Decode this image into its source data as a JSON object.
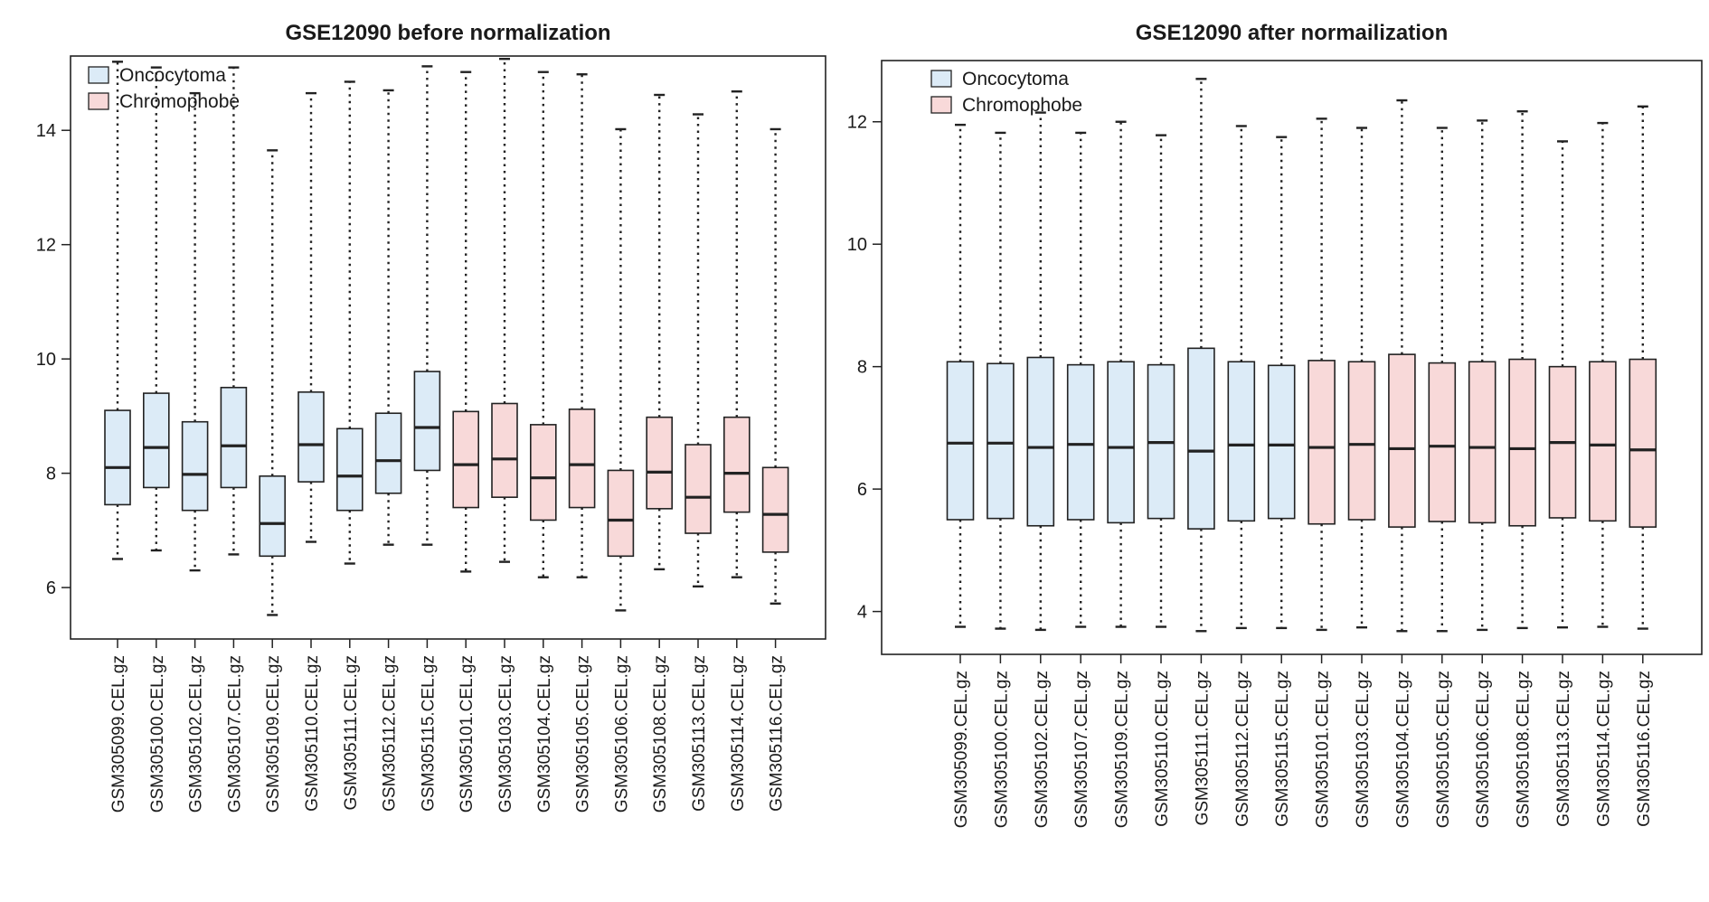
{
  "colors": {
    "Oncocytoma": "#dcebf7",
    "Chromophobe": "#f8d9d9",
    "box_stroke": "#222222",
    "axis": "#222222"
  },
  "chart_data": [
    {
      "type": "boxplot",
      "title": "GSE12090 before normalization",
      "ylim": [
        5.1,
        15.3
      ],
      "yticks": [
        6,
        8,
        10,
        12,
        14
      ],
      "legend": {
        "position": "top-left",
        "entries": [
          "Oncocytoma",
          "Chromophobe"
        ]
      },
      "categories": [
        "GSM305099.CEL.gz",
        "GSM305100.CEL.gz",
        "GSM305102.CEL.gz",
        "GSM305107.CEL.gz",
        "GSM305109.CEL.gz",
        "GSM305110.CEL.gz",
        "GSM305111.CEL.gz",
        "GSM305112.CEL.gz",
        "GSM305115.CEL.gz",
        "GSM305101.CEL.gz",
        "GSM305103.CEL.gz",
        "GSM305104.CEL.gz",
        "GSM305105.CEL.gz",
        "GSM305106.CEL.gz",
        "GSM305108.CEL.gz",
        "GSM305113.CEL.gz",
        "GSM305114.CEL.gz",
        "GSM305116.CEL.gz"
      ],
      "groups": [
        "Oncocytoma",
        "Oncocytoma",
        "Oncocytoma",
        "Oncocytoma",
        "Oncocytoma",
        "Oncocytoma",
        "Oncocytoma",
        "Oncocytoma",
        "Oncocytoma",
        "Chromophobe",
        "Chromophobe",
        "Chromophobe",
        "Chromophobe",
        "Chromophobe",
        "Chromophobe",
        "Chromophobe",
        "Chromophobe",
        "Chromophobe"
      ],
      "boxes": [
        {
          "min": 6.5,
          "q1": 7.45,
          "median": 8.1,
          "q3": 9.1,
          "max": 15.2
        },
        {
          "min": 6.65,
          "q1": 7.75,
          "median": 8.45,
          "q3": 9.4,
          "max": 15.1
        },
        {
          "min": 6.3,
          "q1": 7.35,
          "median": 7.98,
          "q3": 8.9,
          "max": 14.65
        },
        {
          "min": 6.58,
          "q1": 7.75,
          "median": 8.48,
          "q3": 9.5,
          "max": 15.1
        },
        {
          "min": 5.52,
          "q1": 6.55,
          "median": 7.12,
          "q3": 7.95,
          "max": 13.65
        },
        {
          "min": 6.8,
          "q1": 7.85,
          "median": 8.5,
          "q3": 9.42,
          "max": 14.65
        },
        {
          "min": 6.42,
          "q1": 7.35,
          "median": 7.95,
          "q3": 8.78,
          "max": 14.85
        },
        {
          "min": 6.75,
          "q1": 7.65,
          "median": 8.22,
          "q3": 9.05,
          "max": 14.7
        },
        {
          "min": 6.75,
          "q1": 8.05,
          "median": 8.8,
          "q3": 9.78,
          "max": 15.12
        },
        {
          "min": 6.28,
          "q1": 7.4,
          "median": 8.15,
          "q3": 9.08,
          "max": 15.02
        },
        {
          "min": 6.45,
          "q1": 7.58,
          "median": 8.25,
          "q3": 9.22,
          "max": 15.25
        },
        {
          "min": 6.18,
          "q1": 7.18,
          "median": 7.92,
          "q3": 8.85,
          "max": 15.02
        },
        {
          "min": 6.18,
          "q1": 7.4,
          "median": 8.15,
          "q3": 9.12,
          "max": 14.98
        },
        {
          "min": 5.6,
          "q1": 6.55,
          "median": 7.18,
          "q3": 8.05,
          "max": 14.02
        },
        {
          "min": 6.32,
          "q1": 7.38,
          "median": 8.02,
          "q3": 8.98,
          "max": 14.62
        },
        {
          "min": 6.02,
          "q1": 6.95,
          "median": 7.58,
          "q3": 8.5,
          "max": 14.28
        },
        {
          "min": 6.18,
          "q1": 7.32,
          "median": 8.0,
          "q3": 8.98,
          "max": 14.68
        },
        {
          "min": 5.72,
          "q1": 6.62,
          "median": 7.28,
          "q3": 8.1,
          "max": 14.02
        }
      ]
    },
    {
      "type": "boxplot",
      "title": "GSE12090 after normailization",
      "ylim": [
        3.3,
        13.0
      ],
      "yticks": [
        4,
        6,
        8,
        10,
        12
      ],
      "legend": {
        "position": "top-left",
        "entries": [
          "Oncocytoma",
          "Chromophobe"
        ]
      },
      "categories": [
        "GSM305099.CEL.gz",
        "GSM305100.CEL.gz",
        "GSM305102.CEL.gz",
        "GSM305107.CEL.gz",
        "GSM305109.CEL.gz",
        "GSM305110.CEL.gz",
        "GSM305111.CEL.gz",
        "GSM305112.CEL.gz",
        "GSM305115.CEL.gz",
        "GSM305101.CEL.gz",
        "GSM305103.CEL.gz",
        "GSM305104.CEL.gz",
        "GSM305105.CEL.gz",
        "GSM305106.CEL.gz",
        "GSM305108.CEL.gz",
        "GSM305113.CEL.gz",
        "GSM305114.CEL.gz",
        "GSM305116.CEL.gz"
      ],
      "groups": [
        "Oncocytoma",
        "Oncocytoma",
        "Oncocytoma",
        "Oncocytoma",
        "Oncocytoma",
        "Oncocytoma",
        "Oncocytoma",
        "Oncocytoma",
        "Oncocytoma",
        "Chromophobe",
        "Chromophobe",
        "Chromophobe",
        "Chromophobe",
        "Chromophobe",
        "Chromophobe",
        "Chromophobe",
        "Chromophobe",
        "Chromophobe"
      ],
      "boxes": [
        {
          "min": 3.75,
          "q1": 5.5,
          "median": 6.75,
          "q3": 8.08,
          "max": 11.95
        },
        {
          "min": 3.72,
          "q1": 5.52,
          "median": 6.75,
          "q3": 8.05,
          "max": 11.82
        },
        {
          "min": 3.7,
          "q1": 5.4,
          "median": 6.68,
          "q3": 8.15,
          "max": 12.15
        },
        {
          "min": 3.75,
          "q1": 5.5,
          "median": 6.73,
          "q3": 8.03,
          "max": 11.82
        },
        {
          "min": 3.75,
          "q1": 5.45,
          "median": 6.68,
          "q3": 8.08,
          "max": 12.0
        },
        {
          "min": 3.75,
          "q1": 5.52,
          "median": 6.76,
          "q3": 8.03,
          "max": 11.78
        },
        {
          "min": 3.68,
          "q1": 5.35,
          "median": 6.62,
          "q3": 8.3,
          "max": 12.7
        },
        {
          "min": 3.73,
          "q1": 5.48,
          "median": 6.72,
          "q3": 8.08,
          "max": 11.93
        },
        {
          "min": 3.73,
          "q1": 5.52,
          "median": 6.72,
          "q3": 8.02,
          "max": 11.75
        },
        {
          "min": 3.7,
          "q1": 5.43,
          "median": 6.68,
          "q3": 8.1,
          "max": 12.05
        },
        {
          "min": 3.74,
          "q1": 5.5,
          "median": 6.73,
          "q3": 8.08,
          "max": 11.9
        },
        {
          "min": 3.68,
          "q1": 5.38,
          "median": 6.66,
          "q3": 8.2,
          "max": 12.35
        },
        {
          "min": 3.68,
          "q1": 5.47,
          "median": 6.7,
          "q3": 8.06,
          "max": 11.9
        },
        {
          "min": 3.7,
          "q1": 5.45,
          "median": 6.68,
          "q3": 8.08,
          "max": 12.02
        },
        {
          "min": 3.73,
          "q1": 5.4,
          "median": 6.66,
          "q3": 8.12,
          "max": 12.17
        },
        {
          "min": 3.74,
          "q1": 5.53,
          "median": 6.76,
          "q3": 8.0,
          "max": 11.68
        },
        {
          "min": 3.75,
          "q1": 5.48,
          "median": 6.72,
          "q3": 8.08,
          "max": 11.98
        },
        {
          "min": 3.72,
          "q1": 5.38,
          "median": 6.64,
          "q3": 8.12,
          "max": 12.25
        }
      ]
    }
  ]
}
